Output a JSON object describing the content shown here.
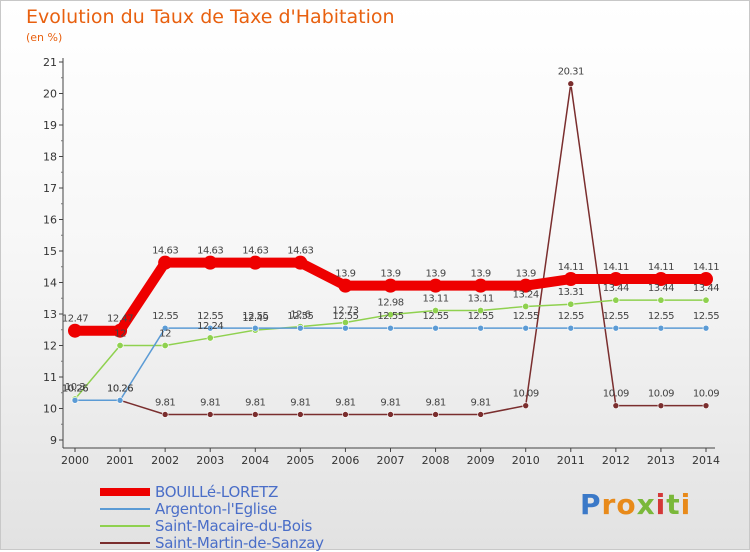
{
  "chart_data": {
    "type": "line",
    "title": "Evolution du Taux de Taxe d'Habitation",
    "subtitle": "(en %)",
    "x": [
      "2000",
      "2001",
      "2002",
      "2003",
      "2004",
      "2005",
      "2006",
      "2007",
      "2008",
      "2009",
      "2010",
      "2011",
      "2012",
      "2013",
      "2014"
    ],
    "ylim": [
      9,
      21
    ],
    "yticks": [
      "9",
      "10",
      "11",
      "12",
      "13",
      "14",
      "15",
      "16",
      "17",
      "18",
      "19",
      "20",
      "21"
    ],
    "grid": false,
    "legend_position": "bottom-left",
    "series": [
      {
        "name": "BOUILLé-LORETZ",
        "color": "#ee0000",
        "values": [
          12.47,
          12.47,
          14.63,
          14.63,
          14.63,
          14.63,
          13.9,
          13.9,
          13.9,
          13.9,
          13.9,
          14.11,
          14.11,
          14.11,
          14.11
        ],
        "labels": [
          "12.47",
          "12.47",
          "14.63",
          "14.63",
          "14.63",
          "14.63",
          "13.9",
          "13.9",
          "13.9",
          "13.9",
          "13.9",
          "14.11",
          "14.11",
          "14.11",
          "14.11"
        ]
      },
      {
        "name": "Argenton-l'Eglise",
        "color": "#5b9bd5",
        "values": [
          10.26,
          10.26,
          12.55,
          12.55,
          12.55,
          12.55,
          12.55,
          12.55,
          12.55,
          12.55,
          12.55,
          12.55,
          12.55,
          12.55,
          12.55
        ],
        "labels": [
          "10.26",
          "10.26",
          "12.55",
          "12.55",
          "12.55",
          "12.55",
          "12.55",
          "12.55",
          "12.55",
          "12.55",
          "12.55",
          "12.55",
          "12.55",
          "12.55",
          "12.55"
        ]
      },
      {
        "name": "Saint-Macaire-du-Bois",
        "color": "#8fd14f",
        "values": [
          10.3,
          12,
          12,
          12.24,
          12.49,
          12.6,
          12.73,
          12.98,
          13.11,
          13.11,
          13.24,
          13.31,
          13.44,
          13.44,
          13.44
        ],
        "labels": [
          "10.3",
          "12",
          "12",
          "12.24",
          "12.49",
          "12.6",
          "12.73",
          "12.98",
          "13.11",
          "13.11",
          "13.24",
          "13.31",
          "13.44",
          "13.44",
          "13.44"
        ]
      },
      {
        "name": "Saint-Martin-de-Sanzay",
        "color": "#7a2e2e",
        "values": [
          10.26,
          10.26,
          9.81,
          9.81,
          9.81,
          9.81,
          9.81,
          9.81,
          9.81,
          9.81,
          10.09,
          20.31,
          10.09,
          10.09,
          10.09
        ],
        "labels": [
          "10.26",
          "10.26",
          "9.81",
          "9.81",
          "9.81",
          "9.81",
          "9.81",
          "9.81",
          "9.81",
          "9.81",
          "10.09",
          "20.31",
          "10.09",
          "10.09",
          "10.09"
        ]
      }
    ]
  },
  "brand": {
    "letters": [
      "P",
      "r",
      "o",
      "x",
      "i",
      "t",
      "i"
    ],
    "colors": [
      "#3b79c8",
      "#e88a1a",
      "#e88a1a",
      "#7ab83a",
      "#d43838",
      "#7ab83a",
      "#e88a1a"
    ]
  }
}
